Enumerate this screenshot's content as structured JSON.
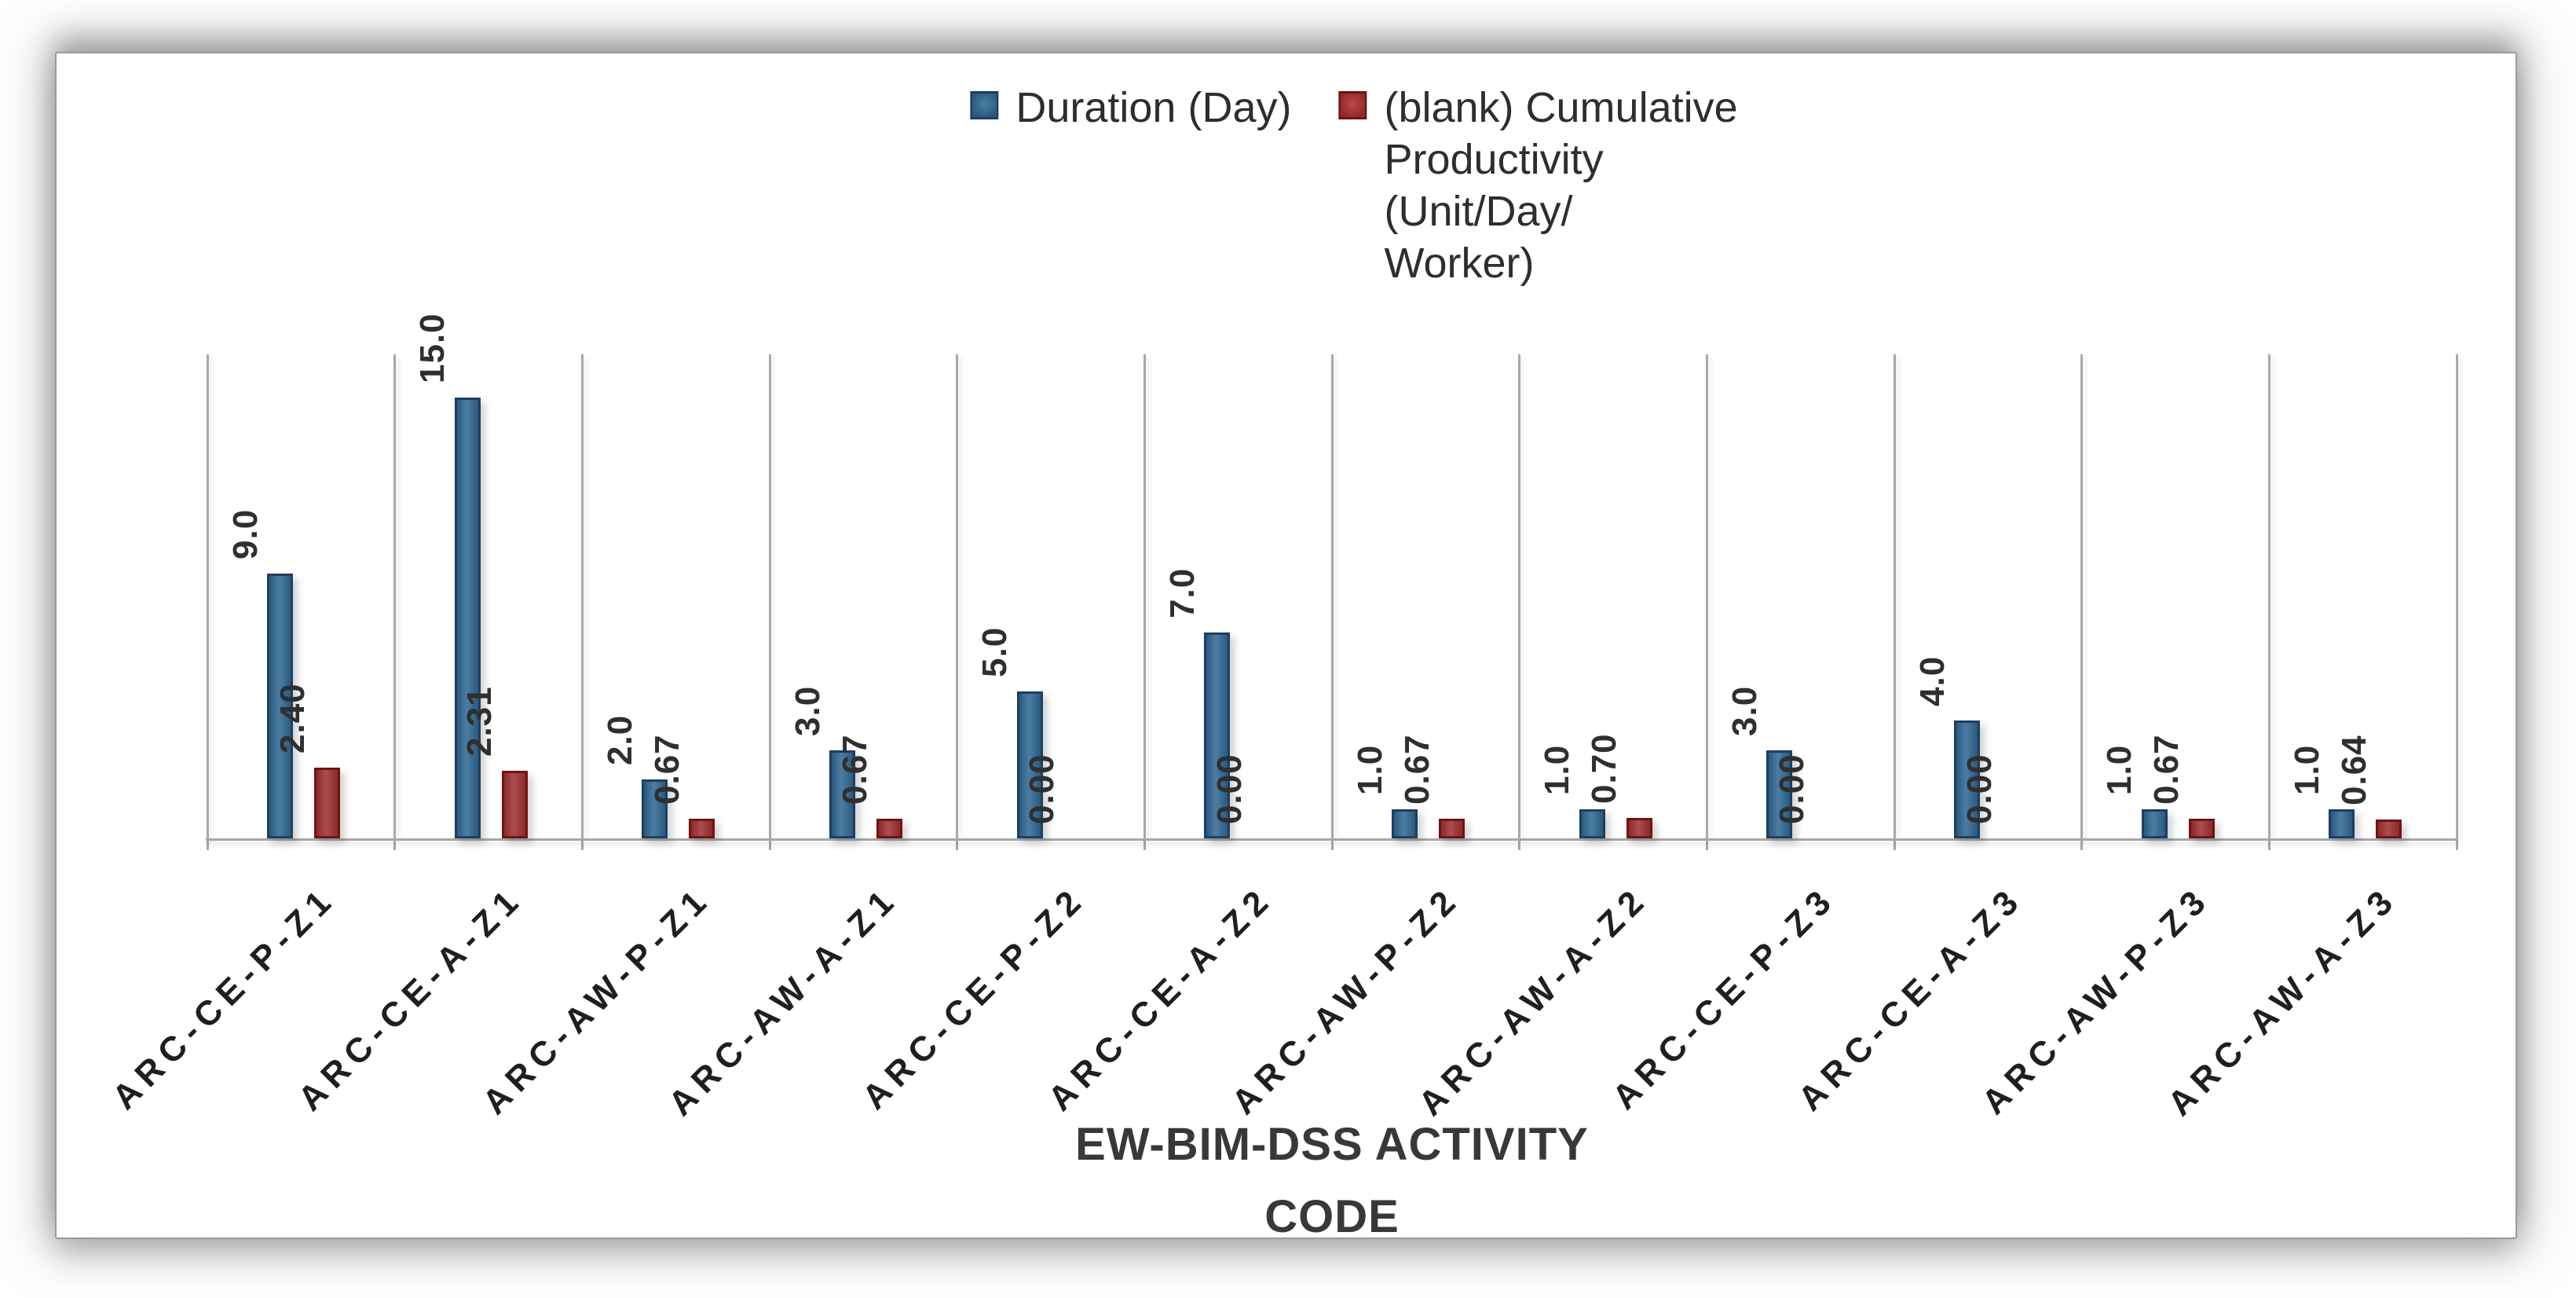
{
  "legend": {
    "items": [
      {
        "label": "Duration (Day)",
        "series": "duration"
      },
      {
        "label": "(blank) Cumulative\nProductivity\n(Unit/Day/\nWorker)",
        "series": "productivity"
      }
    ],
    "position": "top-center"
  },
  "chart_data": {
    "type": "bar",
    "title": "",
    "categories": [
      "ARC-CE-P-Z1",
      "ARC-CE-A-Z1",
      "ARC-AW-P-Z1",
      "ARC-AW-A-Z1",
      "ARC-CE-P-Z2",
      "ARC-CE-A-Z2",
      "ARC-AW-P-Z2",
      "ARC-AW-A-Z2",
      "ARC-CE-P-Z3",
      "ARC-CE-A-Z3",
      "ARC-AW-P-Z3",
      "ARC-AW-A-Z3"
    ],
    "series": [
      {
        "name": "Duration (Day)",
        "values": [
          9.0,
          15.0,
          2.0,
          3.0,
          5.0,
          7.0,
          1.0,
          1.0,
          3.0,
          4.0,
          1.0,
          1.0
        ],
        "labels": [
          "9.0",
          "15.0",
          "2.0",
          "3.0",
          "5.0",
          "7.0",
          "1.0",
          "1.0",
          "3.0",
          "4.0",
          "1.0",
          "1.0"
        ]
      },
      {
        "name": "(blank) Cumulative Productivity (Unit/Day/Worker)",
        "values": [
          2.4,
          2.31,
          0.67,
          0.67,
          0.0,
          0.0,
          0.67,
          0.7,
          0.0,
          0.0,
          0.67,
          0.64
        ],
        "labels": [
          "2.40",
          "2.31",
          "0.67",
          "0.67",
          "0.00",
          "0.00",
          "0.67",
          "0.70",
          "0.00",
          "0.00",
          "0.67",
          "0.64"
        ]
      }
    ],
    "xlabel": "EW-BIM-DSS ACTIVITY\nCODE",
    "ylabel": "",
    "ylim": [
      0,
      16.5
    ],
    "y_axis_visible": false,
    "grid": "vertical-category-separators",
    "legend_position": "top-center",
    "value_labels": "rotated-90-above-bars",
    "category_label_rotation": 45
  },
  "colors": {
    "duration_fill": "#4b7da4",
    "duration_edge": "#2b5a7f",
    "duration_border": "#1d3f63",
    "productivity_fill": "#a84e4e",
    "productivity_edge": "#8e2a2a",
    "productivity_border": "#701414",
    "axis_line": "#a8a8a8",
    "text": "#2f2f2f",
    "panel_border": "#9b9b9b"
  }
}
